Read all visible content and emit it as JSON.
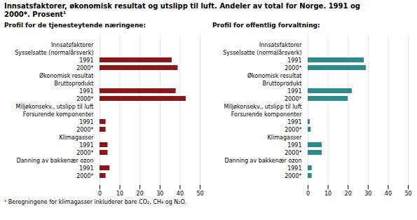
{
  "chart_data": [
    {
      "type": "bar",
      "orientation": "horizontal",
      "title": "Innsatsfaktorer, økonomisk resultat og utslipp til luft. Andeler av total for Norge. 1991 og\n2000*. Prosent¹",
      "subtitle": "Profil for de tjenesteytende næringene:",
      "annotations": [
        "¹ Beregningene for klimagasser inkluderer bare CO₂, CH₄ og N₂O."
      ],
      "categories": [
        "Innsatsfaktorer",
        "Sysselsatte (normalårsverk)",
        "1991",
        "2000*",
        "Økonomisk resultat",
        "Bruttoprodukt",
        "1991",
        "2000*",
        "Miljøkonsekv., utslipp til luft",
        "Forsurende komponenter",
        "1991",
        "2000*",
        "Klimagasser",
        "1991",
        "2000*",
        "Danning av bakkenær ozon",
        "1991",
        "2000*"
      ],
      "values": [
        null,
        null,
        36,
        39,
        null,
        null,
        38,
        43,
        null,
        null,
        3,
        3,
        null,
        4,
        4,
        null,
        5,
        3
      ],
      "color": "#8B1818",
      "xlim": [
        0,
        50
      ],
      "xticks": [
        0,
        10,
        20,
        30,
        40,
        50
      ],
      "grid": true
    },
    {
      "type": "bar",
      "orientation": "horizontal",
      "subtitle": "Profil for offentlig forvaltning:",
      "categories": [
        "Innsatsfaktorer",
        "Sysselsatte (normalårsverk)",
        "1991",
        "2000*",
        "Økonomisk resultat",
        "Bruttoprodukt",
        "1991",
        "2000*",
        "Miljøkonsekv., utslipp til luft",
        "Forsurende komponenter",
        "1991",
        "2000*",
        "Klimagasser",
        "1991",
        "2000*",
        "Danning av bakkenær ozon",
        "1991",
        "2000*"
      ],
      "values": [
        null,
        null,
        28,
        29,
        null,
        null,
        22,
        20,
        null,
        null,
        1,
        1.5,
        null,
        7,
        7,
        null,
        2,
        2
      ],
      "color": "#2E8B8B",
      "xlim": [
        0,
        50
      ],
      "xticks": [
        0,
        10,
        20,
        30,
        40,
        50
      ],
      "grid": true
    }
  ]
}
